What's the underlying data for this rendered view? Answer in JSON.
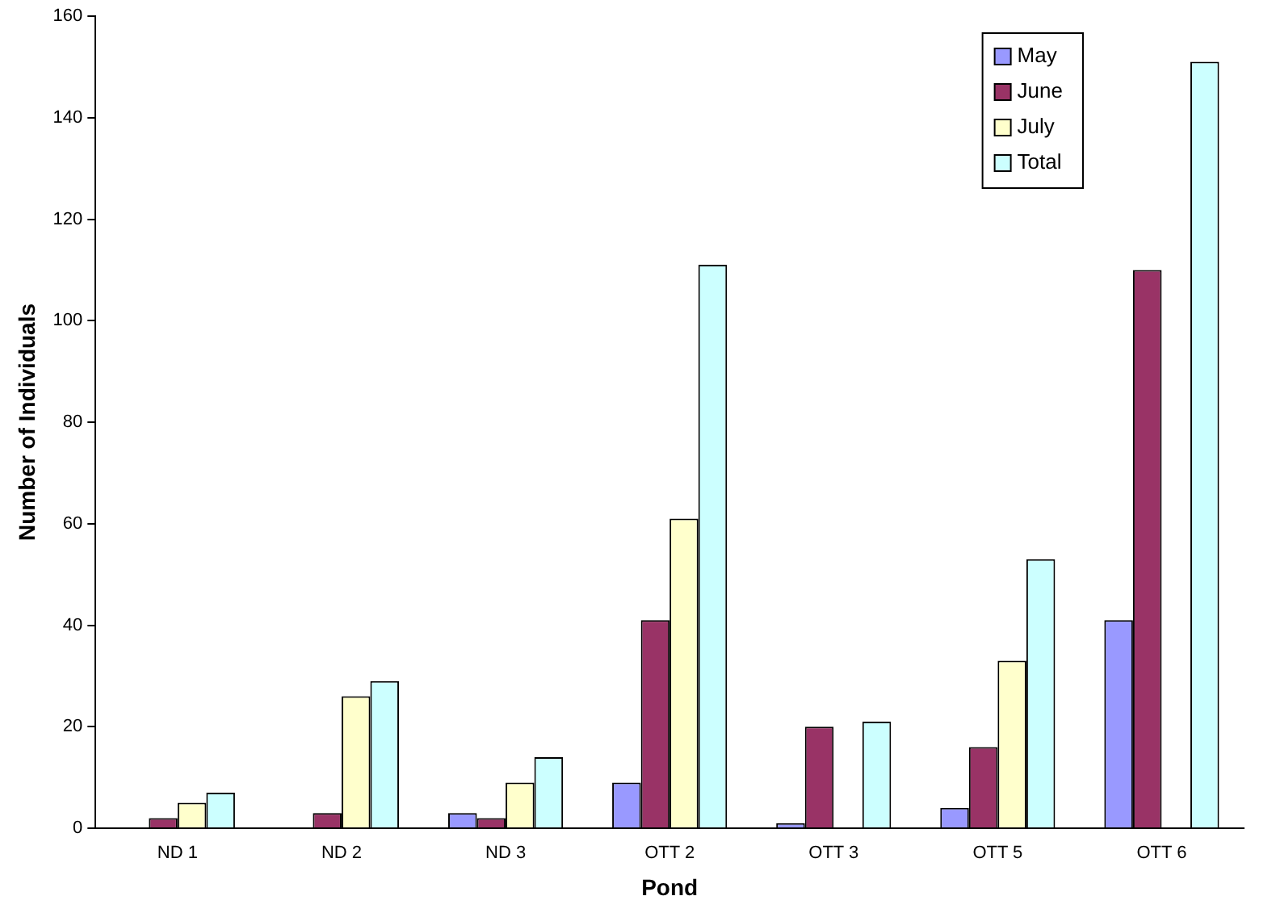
{
  "chart_data": {
    "type": "bar",
    "xlabel": "Pond",
    "ylabel": "Number of Individuals",
    "categories": [
      "ND 1",
      "ND 2",
      "ND 3",
      "OTT 2",
      "OTT 3",
      "OTT 5",
      "OTT 6"
    ],
    "series": [
      {
        "name": "May",
        "color": "#9999ff",
        "values": [
          0,
          0,
          3,
          9,
          1,
          4,
          41
        ]
      },
      {
        "name": "June",
        "color": "#993366",
        "values": [
          2,
          3,
          2,
          41,
          20,
          16,
          110
        ]
      },
      {
        "name": "July",
        "color": "#ffffcc",
        "values": [
          5,
          26,
          9,
          61,
          0,
          33,
          0
        ]
      },
      {
        "name": "Total",
        "color": "#ccffff",
        "values": [
          7,
          29,
          14,
          111,
          21,
          53,
          151
        ]
      }
    ],
    "ylim": [
      0,
      160
    ],
    "yticks": [
      0,
      20,
      40,
      60,
      80,
      100,
      120,
      140,
      160
    ],
    "grid": false,
    "legend": "top right"
  }
}
